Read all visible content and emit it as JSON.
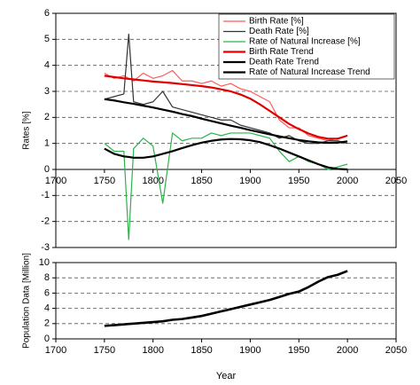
{
  "chart_data": [
    {
      "type": "line",
      "ylabel": "Rates [%]",
      "x": [
        1750,
        1760,
        1770,
        1775,
        1780,
        1790,
        1800,
        1810,
        1820,
        1830,
        1840,
        1850,
        1860,
        1870,
        1880,
        1890,
        1900,
        1910,
        1920,
        1930,
        1940,
        1950,
        1960,
        1970,
        1980,
        1990,
        2000
      ],
      "series": [
        {
          "name": "Birth Rate [%]",
          "color": "#ff5a5a",
          "linewidth": 1.2,
          "values": [
            3.7,
            3.5,
            3.6,
            3.5,
            3.4,
            3.7,
            3.5,
            3.6,
            3.8,
            3.4,
            3.4,
            3.3,
            3.4,
            3.2,
            3.3,
            3.1,
            3.0,
            2.8,
            2.6,
            1.9,
            1.6,
            1.6,
            1.3,
            1.2,
            1.1,
            1.2,
            1.3
          ]
        },
        {
          "name": "Death Rate [%]",
          "color": "#333333",
          "linewidth": 1.2,
          "values": [
            2.7,
            2.8,
            2.9,
            5.2,
            2.6,
            2.5,
            2.6,
            3.0,
            2.4,
            2.3,
            2.2,
            2.1,
            2.0,
            1.9,
            1.9,
            1.7,
            1.6,
            1.5,
            1.4,
            1.2,
            1.3,
            1.1,
            1.0,
            1.0,
            1.1,
            1.1,
            1.0
          ]
        },
        {
          "name": "Rate of Natural Increase [%]",
          "color": "#2db34a",
          "linewidth": 1.2,
          "values": [
            1.0,
            0.7,
            0.7,
            -2.7,
            0.8,
            1.2,
            0.9,
            -1.3,
            1.4,
            1.1,
            1.2,
            1.2,
            1.4,
            1.3,
            1.4,
            1.4,
            1.4,
            1.3,
            1.2,
            0.7,
            0.3,
            0.5,
            0.3,
            0.2,
            0.0,
            0.1,
            0.2
          ]
        },
        {
          "name": "Birth Rate Trend",
          "color": "#e00000",
          "linewidth": 2.2,
          "values": [
            3.6,
            3.55,
            3.5,
            3.48,
            3.46,
            3.42,
            3.38,
            3.35,
            3.32,
            3.28,
            3.24,
            3.2,
            3.15,
            3.08,
            3.0,
            2.88,
            2.72,
            2.5,
            2.25,
            2.0,
            1.75,
            1.55,
            1.38,
            1.25,
            1.18,
            1.18,
            1.3
          ]
        },
        {
          "name": "Death Rate Trend",
          "color": "#000000",
          "linewidth": 2.2,
          "values": [
            2.7,
            2.65,
            2.58,
            2.55,
            2.52,
            2.45,
            2.38,
            2.3,
            2.22,
            2.13,
            2.05,
            1.95,
            1.86,
            1.77,
            1.68,
            1.6,
            1.51,
            1.43,
            1.35,
            1.27,
            1.2,
            1.13,
            1.08,
            1.04,
            1.02,
            1.03,
            1.08
          ]
        },
        {
          "name": "Rate of Natural Increase Trend",
          "color": "#000000",
          "linewidth": 2.2,
          "values": [
            0.8,
            0.6,
            0.5,
            0.48,
            0.45,
            0.45,
            0.5,
            0.6,
            0.7,
            0.82,
            0.93,
            1.03,
            1.1,
            1.15,
            1.17,
            1.16,
            1.12,
            1.05,
            0.93,
            0.8,
            0.65,
            0.5,
            0.35,
            0.2,
            0.08,
            0.02,
            0.0
          ]
        }
      ],
      "xlim": [
        1700,
        2050
      ],
      "xticks": [
        1700,
        1750,
        1800,
        1850,
        1900,
        1950,
        2000,
        2050
      ],
      "ylim": [
        -3,
        6
      ],
      "yticks": [
        -3,
        -2,
        -1,
        0,
        1,
        2,
        3,
        4,
        5,
        6
      ],
      "grid": true,
      "legend": "upper-right"
    },
    {
      "type": "line",
      "xlabel": "Year",
      "ylabel": "Population Data [Million]",
      "x": [
        1750,
        1760,
        1770,
        1775,
        1780,
        1790,
        1800,
        1810,
        1820,
        1830,
        1840,
        1850,
        1860,
        1870,
        1880,
        1890,
        1900,
        1910,
        1920,
        1930,
        1940,
        1950,
        1960,
        1970,
        1980,
        1990,
        2000
      ],
      "series": [
        {
          "color": "#000000",
          "linewidth": 2.6,
          "values": [
            1.7,
            1.8,
            1.9,
            1.95,
            2.0,
            2.1,
            2.2,
            2.3,
            2.5,
            2.6,
            2.8,
            3.0,
            3.3,
            3.6,
            3.9,
            4.2,
            4.5,
            4.8,
            5.1,
            5.5,
            5.9,
            6.2,
            6.8,
            7.5,
            8.1,
            8.4,
            8.9
          ]
        }
      ],
      "xlim": [
        1700,
        2050
      ],
      "xticks": [
        1700,
        1750,
        1800,
        1850,
        1900,
        1950,
        2000,
        2050
      ],
      "ylim": [
        0,
        10
      ],
      "yticks": [
        0,
        2,
        4,
        6,
        8,
        10
      ],
      "grid": true
    }
  ]
}
